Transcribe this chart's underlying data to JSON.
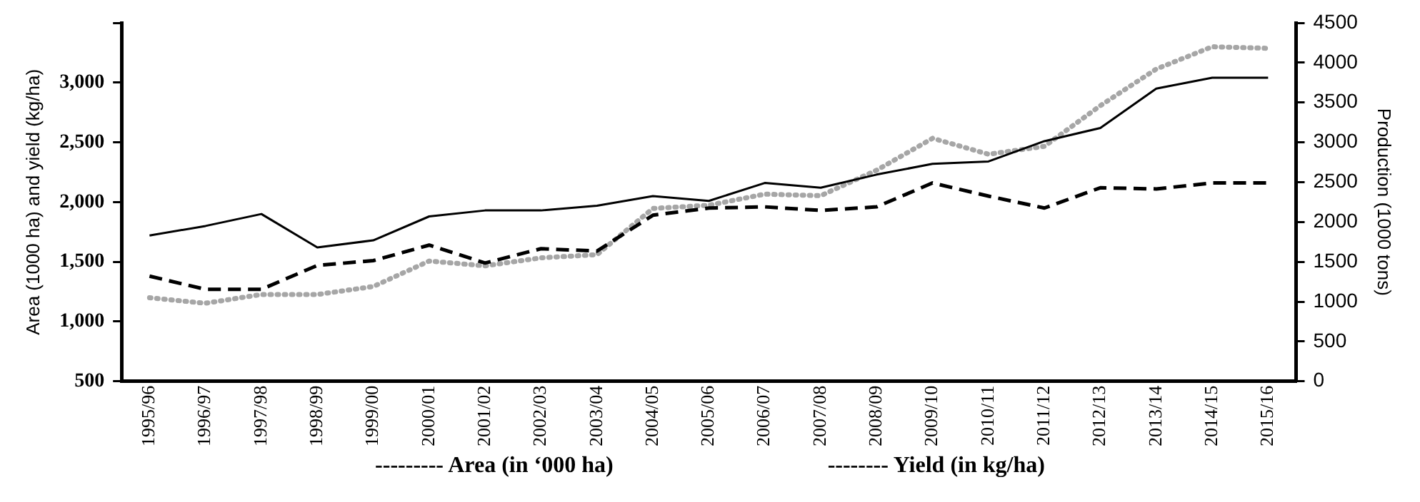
{
  "chart_data": {
    "type": "line",
    "ylabel": "Area (1000 ha) and yield (kg/ha)",
    "y2label": "Production (1000 tons)",
    "categories": [
      "1995/96",
      "1996/97",
      "1997/98",
      "1998/99",
      "1999/00",
      "2000/01",
      "2001/02",
      "2002/03",
      "2003/04",
      "2004/05",
      "2005/06",
      "2006/07",
      "2007/08",
      "2008/09",
      "2009/10",
      "2010/11",
      "2011/12",
      "2012/13",
      "2013/14",
      "2014/15",
      "2015/16"
    ],
    "series": [
      {
        "color": "#000000",
        "line_style": "dashed",
        "values": [
          1380,
          1270,
          1270,
          1470,
          1510,
          1640,
          1490,
          1610,
          1590,
          1890,
          1950,
          1960,
          1930,
          1960,
          2160,
          2050,
          1950,
          2120,
          2110,
          2160,
          2160
        ]
      },
      {
        "color": "#000000",
        "line_style": "solid",
        "values": [
          1720,
          1800,
          1900,
          1620,
          1680,
          1880,
          1930,
          1930,
          1970,
          2050,
          2010,
          2160,
          2120,
          2230,
          2320,
          2340,
          2510,
          2620,
          2950,
          3040,
          3040
        ]
      },
      {
        "color": "#a6a6a6",
        "line_style": "dotted",
        "axis": "y2",
        "values": [
          1050,
          980,
          1090,
          1090,
          1190,
          1510,
          1450,
          1550,
          1590,
          2170,
          2210,
          2350,
          2330,
          2650,
          3050,
          2850,
          2950,
          3460,
          3920,
          4200,
          4180
        ]
      }
    ],
    "ylim": [
      500,
      3500
    ],
    "yticks": [
      500,
      {
        "value": 1000,
        "label": "1,000"
      },
      {
        "value": 1500,
        "label": "1,500"
      },
      {
        "value": 2000,
        "label": "2,000"
      },
      {
        "value": 2500,
        "label": "2,500"
      },
      {
        "value": 3000,
        "label": "3,000"
      },
      {
        "value": 3500,
        "label": null
      }
    ],
    "y2lim": [
      0,
      4500
    ],
    "y2ticks": [
      0,
      500,
      1000,
      1500,
      2000,
      2500,
      3000,
      3500,
      4000,
      4500
    ],
    "grid": false,
    "legend": false,
    "marker": "none",
    "annotations": [
      "--------- Area (in ‘000 ha)",
      "-------- Yield (in kg/ha)"
    ]
  }
}
